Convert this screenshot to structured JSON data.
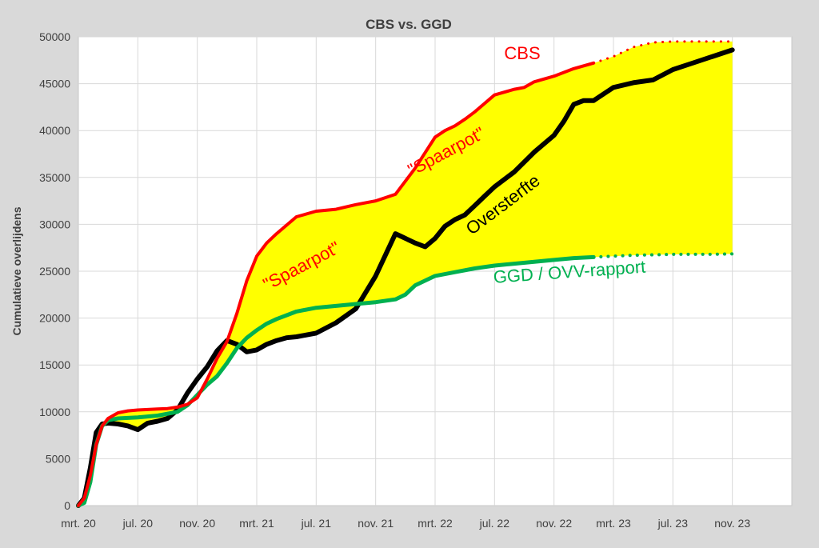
{
  "chart_data": {
    "type": "line",
    "title": "CBS vs. GGD",
    "ylabel": "Cumulatieve overlijdens",
    "xlabel": "",
    "ylim": [
      0,
      50000
    ],
    "y_ticks": [
      0,
      5000,
      10000,
      15000,
      20000,
      25000,
      30000,
      35000,
      40000,
      45000,
      50000
    ],
    "x_ticks": [
      "mrt. 20",
      "jul. 20",
      "nov. 20",
      "mrt. 21",
      "jul. 21",
      "nov. 21",
      "mrt. 22",
      "jul. 22",
      "nov. 22",
      "mrt. 23",
      "jul. 23",
      "nov. 23"
    ],
    "x_unit": "months since mrt. 20",
    "grid": true,
    "colors": {
      "cbs": "#ff0000",
      "oversterfte": "#000000",
      "ggd": "#00b050",
      "fill": "#ffff00"
    },
    "series": [
      {
        "name": "CBS",
        "color": "#ff0000",
        "x": [
          0,
          0.3,
          0.6,
          0.9,
          1.2,
          1.5,
          2,
          2.5,
          3,
          3.5,
          4,
          4.5,
          5,
          5.5,
          6,
          6.5,
          7,
          7.5,
          8,
          8.5,
          9,
          9.5,
          10,
          11,
          12,
          13,
          14,
          15,
          16,
          17,
          18,
          18.5,
          19,
          19.5,
          20,
          21,
          22,
          22.5,
          23,
          24,
          25,
          26,
          27,
          28,
          29,
          30,
          31,
          32,
          33
        ],
        "y": [
          0,
          800,
          3200,
          6500,
          8500,
          9300,
          9900,
          10100,
          10200,
          10250,
          10300,
          10350,
          10500,
          10800,
          11500,
          13500,
          15700,
          17500,
          20500,
          24000,
          26600,
          28000,
          29000,
          30800,
          31400,
          31600,
          32100,
          32500,
          33200,
          36000,
          39300,
          40000,
          40500,
          41200,
          42000,
          43800,
          44400,
          44600,
          45200,
          45800,
          46600,
          47200,
          47900,
          48900,
          49400,
          49500,
          49500,
          49500,
          49500
        ]
      },
      {
        "name": "Oversterfte",
        "color": "#000000",
        "x": [
          0,
          0.3,
          0.6,
          0.9,
          1.2,
          1.5,
          2,
          2.5,
          3,
          3.5,
          4,
          4.5,
          5,
          5.5,
          6,
          6.5,
          7,
          7.5,
          8,
          8.5,
          9,
          9.5,
          10,
          10.5,
          11,
          12,
          13,
          14,
          15,
          16,
          17,
          17.5,
          18,
          18.5,
          19,
          19.5,
          20,
          20.5,
          21,
          22,
          23,
          24,
          24.5,
          25,
          25.5,
          26,
          27,
          28,
          29,
          30,
          31,
          32,
          33
        ],
        "y": [
          0,
          800,
          4000,
          7800,
          8700,
          8800,
          8700,
          8500,
          8100,
          8800,
          9000,
          9300,
          10200,
          12000,
          13500,
          14800,
          16500,
          17600,
          17200,
          16400,
          16600,
          17200,
          17600,
          17900,
          18000,
          18400,
          19500,
          21000,
          24500,
          29000,
          28000,
          27600,
          28500,
          29800,
          30500,
          31000,
          32000,
          33000,
          34000,
          35600,
          37700,
          39500,
          41000,
          42800,
          43200,
          43200,
          44600,
          45100,
          45400,
          46500,
          47200,
          47900,
          48600
        ]
      },
      {
        "name": "GGD / OVV-rapport",
        "color": "#00b050",
        "x": [
          0,
          0.3,
          0.6,
          0.9,
          1.2,
          1.5,
          2,
          3,
          4,
          5,
          5.5,
          6,
          6.5,
          7,
          7.5,
          8,
          8.5,
          9,
          9.5,
          10,
          10.5,
          11,
          12,
          13,
          14,
          15,
          16,
          16.5,
          17,
          18,
          19,
          20,
          21,
          22,
          23,
          24,
          25,
          26,
          27,
          28,
          29,
          30,
          31,
          32,
          33
        ],
        "y": [
          0,
          300,
          2500,
          6500,
          8500,
          9100,
          9300,
          9400,
          9600,
          10000,
          10700,
          11800,
          12900,
          13800,
          15200,
          16800,
          17900,
          18700,
          19400,
          19900,
          20300,
          20700,
          21100,
          21300,
          21500,
          21700,
          22000,
          22500,
          23500,
          24500,
          24900,
          25300,
          25600,
          25800,
          26000,
          26200,
          26400,
          26500,
          26600,
          26700,
          26750,
          26800,
          26800,
          26800,
          26850
        ]
      }
    ],
    "projection_from_x": 26,
    "annotations": [
      {
        "text": "CBS",
        "color": "#ff0000",
        "x": 22.4,
        "y": 47600,
        "rotate": 0
      },
      {
        "text": "\"Spaarpot\"",
        "color": "#ff0000",
        "x": 11.4,
        "y": 25000,
        "rotate": -28
      },
      {
        "text": "\"Spaarpot\"",
        "color": "#ff0000",
        "x": 18.7,
        "y": 37200,
        "rotate": -28
      },
      {
        "text": "Oversterfte",
        "color": "#000000",
        "x": 21.6,
        "y": 31600,
        "rotate": -37
      },
      {
        "text": "GGD / OVV-rapport",
        "color": "#00b050",
        "x": 24.8,
        "y": 24300,
        "rotate": -4
      }
    ]
  }
}
